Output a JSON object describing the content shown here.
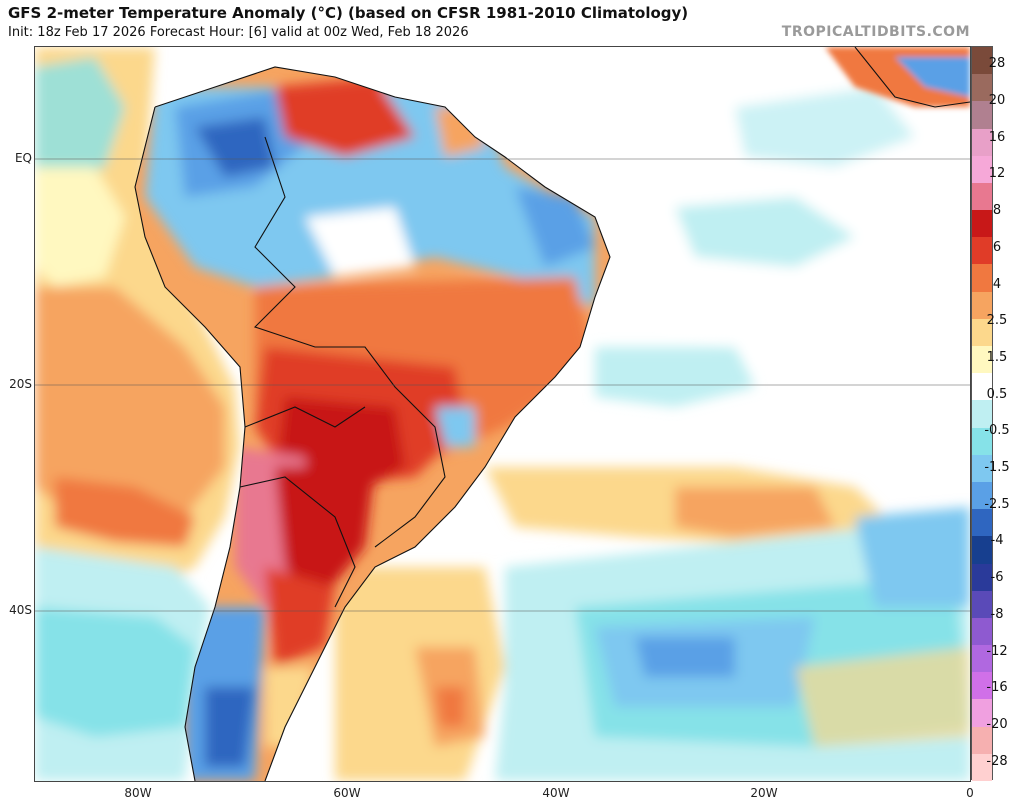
{
  "header": {
    "title": "GFS 2-meter Temperature Anomaly (°C) (based on CFSR 1981-2010 Climatology)",
    "subtitle": "Init: 18z Feb 17 2026   Forecast Hour: [6]   valid at 00z Wed, Feb 18 2026",
    "brand": "TROPICALTIDBITS.COM"
  },
  "axes": {
    "lat_labels": [
      "EQ",
      "20S",
      "40S"
    ],
    "lon_labels": [
      "80W",
      "60W",
      "40W",
      "20W",
      "0"
    ]
  },
  "colorbar": {
    "labels": [
      "28",
      "20",
      "16",
      "12",
      "8",
      "6",
      "4",
      "2.5",
      "1.5",
      "0.5",
      "-0.5",
      "-1.5",
      "-2.5",
      "-4",
      "-6",
      "-8",
      "-12",
      "-16",
      "-20",
      "-28"
    ],
    "colors": [
      "#7a4a3a",
      "#9a6a5e",
      "#b08090",
      "#e8a0c8",
      "#f6a8d8",
      "#e87890",
      "#c81818",
      "#e03c28",
      "#f07840",
      "#f6a460",
      "#fcd88c",
      "#fff8c0",
      "#ffffff",
      "#bfeff2",
      "#86e2e8",
      "#7ec8f0",
      "#5aa0e6",
      "#2f66c0",
      "#173f8f",
      "#2a3a9a",
      "#5a4ab8",
      "#8e5ad0",
      "#b068e0",
      "#d070e8",
      "#f0a0e0",
      "#f6b0b0",
      "#ffd0d0"
    ]
  },
  "map": {
    "region": "South America and South Atlantic",
    "variable": "2-meter temperature anomaly"
  }
}
